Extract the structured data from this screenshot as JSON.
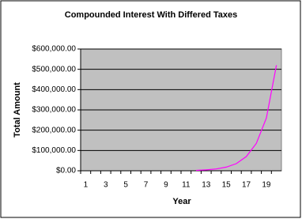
{
  "chart_data": {
    "type": "line",
    "title": "Compounded Interest With Differed Taxes",
    "x_label": "Year",
    "y_label": "Total Amount",
    "categories": [
      1,
      null,
      3,
      null,
      5,
      null,
      7,
      null,
      9,
      null,
      11,
      null,
      13,
      null,
      15,
      null,
      17,
      null,
      19,
      null
    ],
    "series": [
      {
        "name": "Total Amount",
        "color": "#ff00ff",
        "values": [
          null,
          null,
          null,
          null,
          null,
          null,
          null,
          null,
          null,
          null,
          null,
          2000,
          4500,
          9000,
          18000,
          35000,
          70000,
          135000,
          260000,
          520000
        ]
      }
    ],
    "ylim": [
      0,
      600000
    ],
    "yticks": [
      {
        "value": 0,
        "label": "$0.00"
      },
      {
        "value": 100000,
        "label": "$100,000.00"
      },
      {
        "value": 200000,
        "label": "$200,000.00"
      },
      {
        "value": 300000,
        "label": "$300,000.00"
      },
      {
        "value": 400000,
        "label": "$400,000.00"
      },
      {
        "value": 500000,
        "label": "$500,000.00"
      },
      {
        "value": 600000,
        "label": "$600,000.00"
      }
    ],
    "grid": true,
    "plot_background": "#c0c0c0"
  }
}
